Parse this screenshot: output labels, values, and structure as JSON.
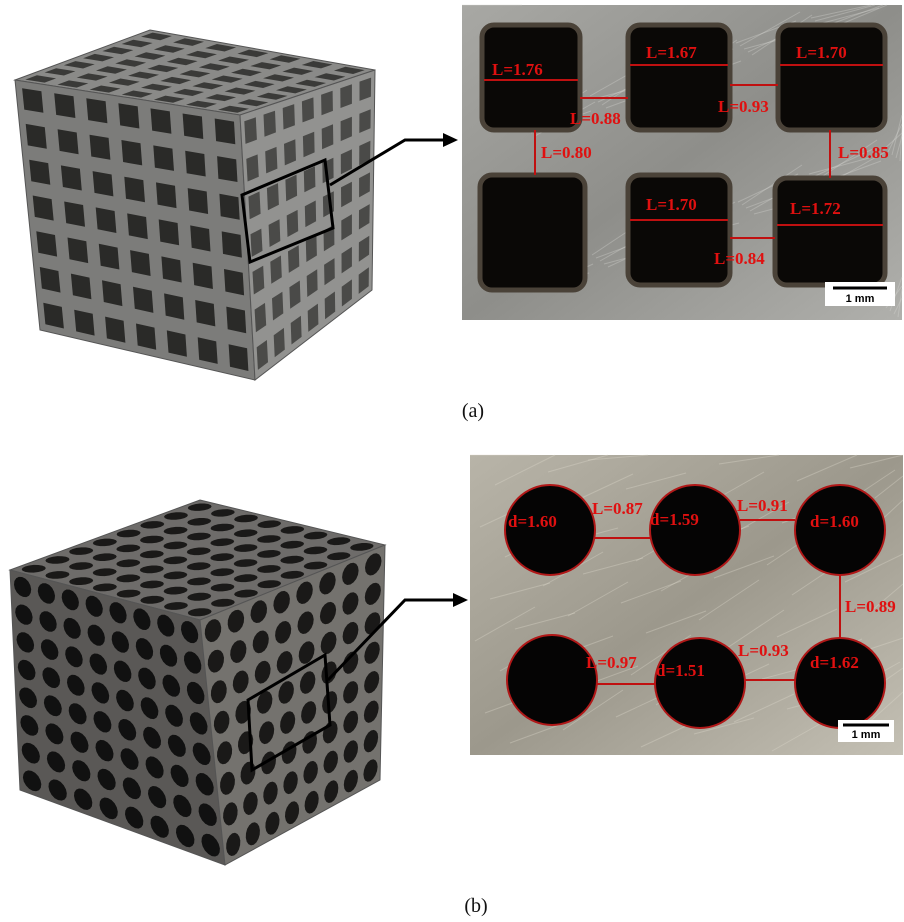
{
  "panels": [
    {
      "label": "(a)",
      "scale_bar": "1 mm",
      "measurements": [
        "L=1.76",
        "L=1.67",
        "L=1.70",
        "L=0.88",
        "L=0.93",
        "L=0.80",
        "L=0.85",
        "L=1.70",
        "L=1.72",
        "L=0.84"
      ]
    },
    {
      "label": "(b)",
      "scale_bar": "1 mm",
      "measurements": [
        "d=1.60",
        "L=0.87",
        "d=1.59",
        "L=0.91",
        "d=1.60",
        "L=0.89",
        "L=0.97",
        "L=0.93",
        "d=1.51",
        "d=1.62"
      ]
    }
  ]
}
